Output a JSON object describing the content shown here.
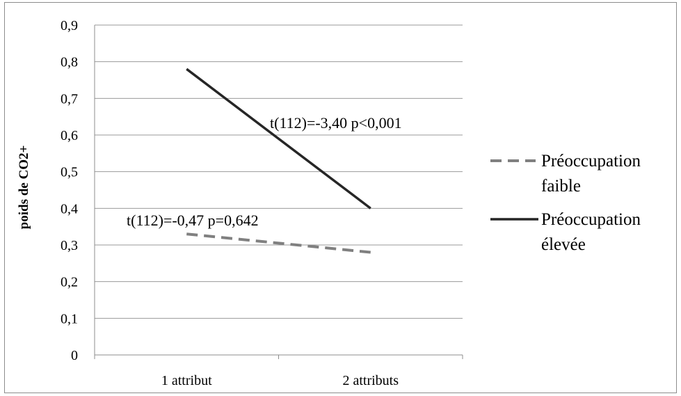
{
  "chart_data": {
    "type": "line",
    "title": "",
    "xlabel": "",
    "ylabel": "poids de CO2+",
    "categories": [
      "1 attribut",
      "2 attributs"
    ],
    "ylim": [
      0,
      0.9
    ],
    "y_ticks": [
      0,
      0.1,
      0.2,
      0.3,
      0.4,
      0.5,
      0.6,
      0.7,
      0.8,
      0.9
    ],
    "y_tick_labels": [
      "0",
      "0,1",
      "0,2",
      "0,3",
      "0,4",
      "0,5",
      "0,6",
      "0,7",
      "0,8",
      "0,9"
    ],
    "grid": true,
    "legend_position": "right",
    "series": [
      {
        "name_lines": [
          "Préoccupation",
          "faible"
        ],
        "values": [
          0.33,
          0.28
        ],
        "color": "#808080",
        "style": "dashed",
        "annotation": "t(112)=-0,47 p=0,642"
      },
      {
        "name_lines": [
          "Préoccupation",
          "élevée"
        ],
        "values": [
          0.78,
          0.4
        ],
        "color": "#262626",
        "style": "solid",
        "annotation": "t(112)=-3,40 p<0,001"
      }
    ]
  }
}
